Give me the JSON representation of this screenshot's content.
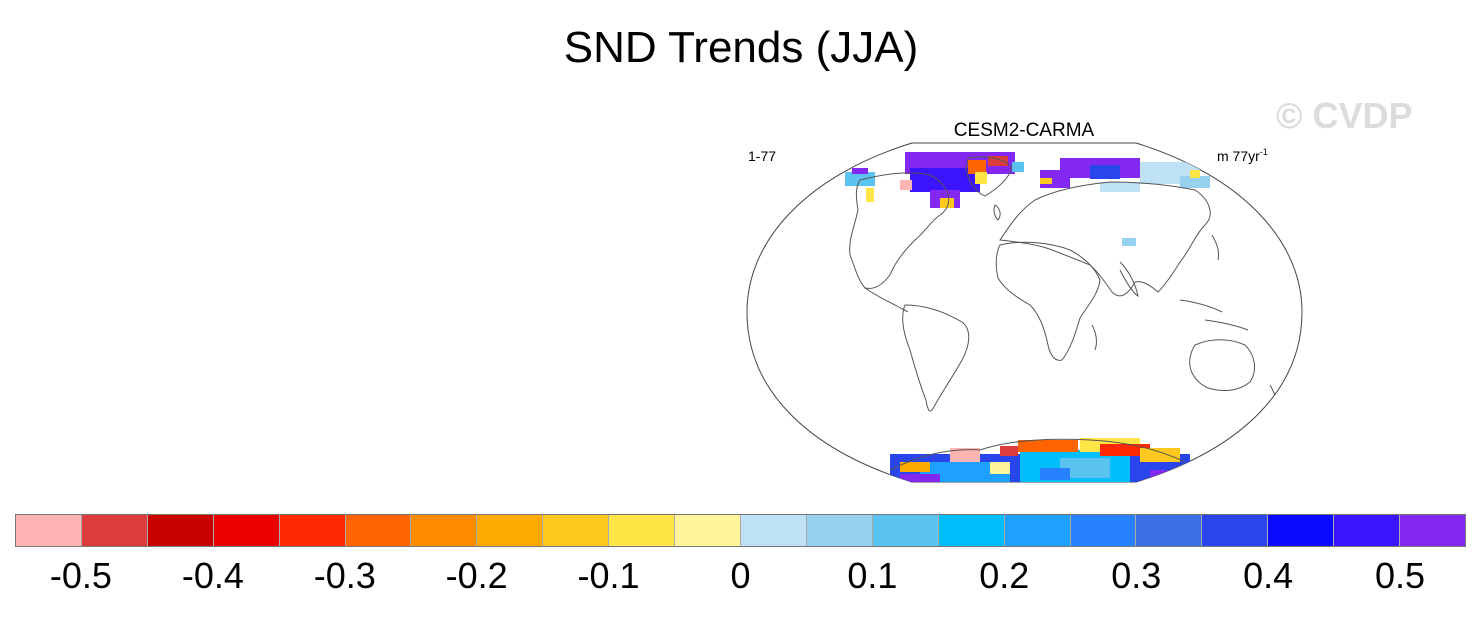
{
  "title": "SND Trends (JJA)",
  "watermark": "© CVDP",
  "panel": {
    "model": "CESM2-CARMA",
    "left_text": "1-77",
    "right_text": "m 77yr",
    "right_superscript": "-1"
  },
  "colorbar": {
    "colors": [
      "#ffb4b4",
      "#dc3c3c",
      "#c80000",
      "#eb0000",
      "#ff2800",
      "#ff6400",
      "#ff8c00",
      "#ffaa00",
      "#ffc81e",
      "#ffe646",
      "#fff59b",
      "#bee1f5",
      "#96d2f0",
      "#5ac3f0",
      "#00bef9",
      "#1ea0ff",
      "#2882ff",
      "#3c6ee6",
      "#2846eb",
      "#0a0aff",
      "#3c14ff",
      "#8228f0"
    ],
    "labels": [
      "-0.5",
      "-0.4",
      "-0.3",
      "-0.2",
      "-0.1",
      "0",
      "0.1",
      "0.2",
      "0.3",
      "0.4",
      "0.5"
    ]
  }
}
